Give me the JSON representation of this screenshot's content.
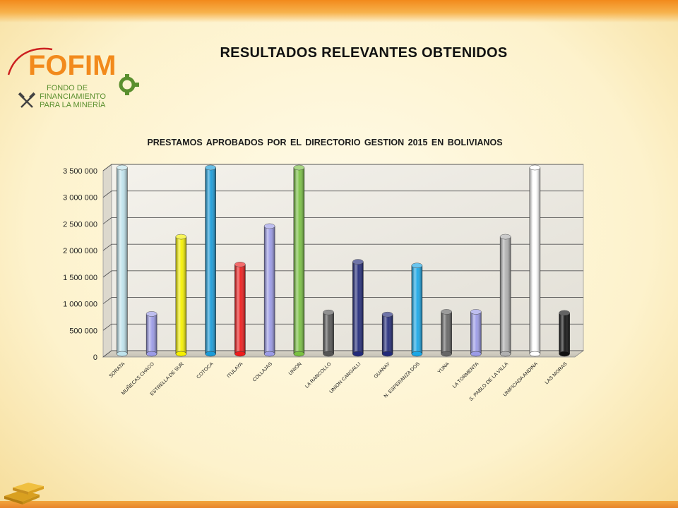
{
  "header": {
    "title": "RESULTADOS RELEVANTES OBTENIDOS"
  },
  "logo": {
    "brand": "FOFIM",
    "line1": "FONDO DE",
    "line2": "FINANCIAMIENTO",
    "line3": "PARA LA MINERÍA"
  },
  "colors": {
    "brand_orange": "#f28a1c",
    "brand_green": "#5a8f2e"
  },
  "chart_data": {
    "type": "bar",
    "title": "PRESTAMOS APROBADOS POR EL DIRECTORIO GESTION 2015 EN BOLIVIANOS",
    "xlabel": "",
    "ylabel": "",
    "ylim": [
      0,
      3500000
    ],
    "yticks": [
      0,
      500000,
      1000000,
      1500000,
      2000000,
      2500000,
      3000000,
      3500000
    ],
    "ytick_labels": [
      "0",
      "500 000",
      "1 000 000",
      "1 500 000",
      "2 000 000",
      "2 500 000",
      "3 000 000",
      "3 500 000"
    ],
    "grid": true,
    "legend": "none",
    "categories": [
      "SORATA",
      "MUÑECAS CHACO",
      "ESTRELLA DE SUR",
      "COTOCA",
      "ITULAYA",
      "COLLAJAS",
      "UNION",
      "LA RANCOLLO",
      "UNION CANGALLI",
      "GUANAY",
      "N. ESPERANZA DOS",
      "YUNA",
      "LA TORMENTA",
      "S. PABLO DE LA VILLA",
      "UNIFICADA ANDINA",
      "LAS MORAS"
    ],
    "values": [
      3500000,
      750000,
      2200000,
      3500000,
      1680000,
      2400000,
      3500000,
      780000,
      1730000,
      740000,
      1660000,
      790000,
      790000,
      2200000,
      3500000,
      770000
    ],
    "bar_colors": [
      "#bfe3ec",
      "#9b9be6",
      "#f5f000",
      "#1a9bd8",
      "#ee1c1c",
      "#9b9be6",
      "#7ac142",
      "#555555",
      "#222a7a",
      "#222a7a",
      "#1aa7e6",
      "#666666",
      "#9b9be6",
      "#b0b0b0",
      "#ffffff",
      "#111111"
    ]
  }
}
